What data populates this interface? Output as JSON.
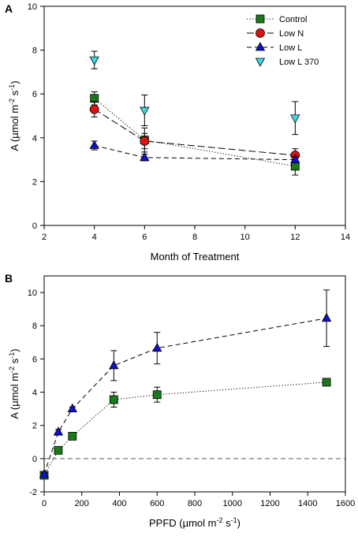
{
  "chart_data": [
    {
      "type": "scatter",
      "panel": "A",
      "xlabel": "Month of Treatment",
      "ylabel_main": "A (µmol m",
      "ylabel_sup1": "-2",
      "ylabel_mid": " s",
      "ylabel_sup2": "-1",
      "ylabel_end": ")",
      "xlim": [
        2,
        14
      ],
      "ylim": [
        0,
        10
      ],
      "xticks": [
        2,
        4,
        6,
        8,
        10,
        12,
        14
      ],
      "yticks": [
        0,
        2,
        4,
        6,
        8,
        10
      ],
      "legend_position": "top-right",
      "series": [
        {
          "name": "Control",
          "marker": "square",
          "color": "#1a7a1a",
          "line": "dotted",
          "x": [
            4,
            6,
            12
          ],
          "y": [
            5.8,
            3.9,
            2.7
          ],
          "err": [
            0.3,
            0.55,
            0.4
          ]
        },
        {
          "name": "Low N",
          "marker": "circle",
          "color": "#e01010",
          "line": "longdash",
          "x": [
            4,
            6,
            12
          ],
          "y": [
            5.3,
            3.85,
            3.2
          ],
          "err": [
            0.35,
            0.35,
            0.3
          ]
        },
        {
          "name": "Low L",
          "marker": "triangle-up",
          "color": "#1010d0",
          "line": "dash",
          "x": [
            4,
            6,
            12
          ],
          "y": [
            3.65,
            3.1,
            3.0
          ],
          "err": [
            0.2,
            0.15,
            0.15
          ]
        },
        {
          "name": "Low L 370",
          "marker": "triangle-down",
          "color": "#40d8e0",
          "line": "none",
          "x": [
            4,
            6,
            12
          ],
          "y": [
            7.55,
            5.25,
            4.9
          ],
          "err": [
            0.4,
            0.7,
            0.75
          ]
        }
      ]
    },
    {
      "type": "line",
      "panel": "B",
      "xlabel_main": "PPFD (µmol m",
      "xlabel_sup1": "-2",
      "xlabel_mid": " s",
      "xlabel_sup2": "-1",
      "xlabel_end": ")",
      "ylabel_main": "A (µmol m",
      "ylabel_sup1": "-2",
      "ylabel_mid": " s",
      "ylabel_sup2": "-1",
      "ylabel_end": ")",
      "xlim": [
        0,
        1600
      ],
      "ylim": [
        -2,
        11
      ],
      "xticks": [
        0,
        200,
        400,
        600,
        800,
        1000,
        1200,
        1400,
        1600
      ],
      "yticks": [
        -2,
        0,
        2,
        4,
        6,
        8,
        10
      ],
      "reference_line_y": 0,
      "series": [
        {
          "name": "Control",
          "marker": "square",
          "color": "#1a7a1a",
          "line": "dotted",
          "x": [
            0,
            75,
            150,
            370,
            600,
            1500
          ],
          "y": [
            -1.0,
            0.5,
            1.35,
            3.55,
            3.85,
            4.6
          ],
          "err": [
            0.1,
            0.1,
            0.1,
            0.45,
            0.45,
            0.1
          ]
        },
        {
          "name": "Low L",
          "marker": "triangle-up",
          "color": "#1010d0",
          "line": "dash",
          "x": [
            0,
            75,
            150,
            370,
            600,
            1500
          ],
          "y": [
            -0.95,
            1.6,
            3.0,
            5.6,
            6.65,
            8.45
          ],
          "err": [
            0.1,
            0.15,
            0.1,
            0.9,
            0.95,
            1.7
          ]
        }
      ]
    }
  ]
}
